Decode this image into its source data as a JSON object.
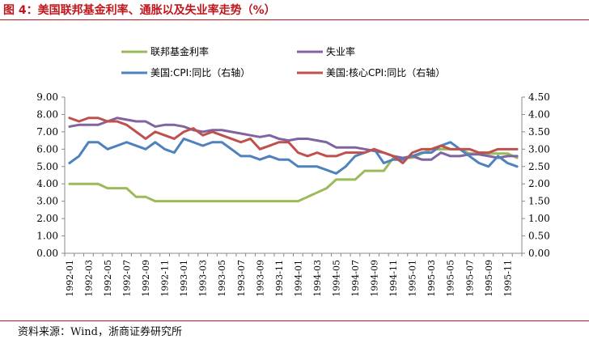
{
  "header": {
    "title": "图 4：美国联邦基金利率、通胀以及失业率走势（%）"
  },
  "footer": {
    "source": "资料来源：Wind，浙商证券研究所"
  },
  "chart_data": {
    "type": "line",
    "x": [
      "1992-01",
      "1992-02",
      "1992-03",
      "1992-04",
      "1992-05",
      "1992-06",
      "1992-07",
      "1992-08",
      "1992-09",
      "1992-10",
      "1992-11",
      "1992-12",
      "1993-01",
      "1993-02",
      "1993-03",
      "1993-04",
      "1993-05",
      "1993-06",
      "1993-07",
      "1993-08",
      "1993-09",
      "1993-10",
      "1993-11",
      "1993-12",
      "1994-01",
      "1994-02",
      "1994-03",
      "1994-04",
      "1994-05",
      "1994-06",
      "1994-07",
      "1994-08",
      "1994-09",
      "1994-10",
      "1994-11",
      "1994-12",
      "1995-01",
      "1995-02",
      "1995-03",
      "1995-04",
      "1995-05",
      "1995-06",
      "1995-07",
      "1995-08",
      "1995-09",
      "1995-10",
      "1995-11",
      "1995-12"
    ],
    "x_tick_labels": [
      "1992-01",
      "1992-03",
      "1992-05",
      "1992-07",
      "1992-09",
      "1992-11",
      "1993-01",
      "1993-03",
      "1993-05",
      "1993-07",
      "1993-09",
      "1993-11",
      "1994-01",
      "1994-03",
      "1994-05",
      "1994-07",
      "1994-09",
      "1994-11",
      "1995-01",
      "1995-03",
      "1995-05",
      "1995-07",
      "1995-09",
      "1995-11"
    ],
    "left_axis": {
      "ylim": [
        0,
        9
      ],
      "ticks": [
        "0.00",
        "1.00",
        "2.00",
        "3.00",
        "4.00",
        "5.00",
        "6.00",
        "7.00",
        "8.00",
        "9.00"
      ]
    },
    "right_axis": {
      "ylim": [
        0,
        4.5
      ],
      "ticks": [
        "0.00",
        "0.50",
        "1.00",
        "1.50",
        "2.00",
        "2.50",
        "3.00",
        "3.50",
        "4.00",
        "4.50"
      ]
    },
    "grid": false,
    "legend_position": "top",
    "series": [
      {
        "name": "联邦基金利率",
        "axis": "left",
        "color": "#9bbb59",
        "values": [
          4.0,
          4.0,
          4.0,
          4.0,
          3.75,
          3.75,
          3.75,
          3.25,
          3.25,
          3.0,
          3.0,
          3.0,
          3.0,
          3.0,
          3.0,
          3.0,
          3.0,
          3.0,
          3.0,
          3.0,
          3.0,
          3.0,
          3.0,
          3.0,
          3.0,
          3.25,
          3.5,
          3.75,
          4.25,
          4.25,
          4.25,
          4.75,
          4.75,
          4.75,
          5.5,
          5.5,
          5.5,
          5.75,
          6.0,
          6.0,
          6.0,
          6.0,
          5.75,
          5.75,
          5.75,
          5.75,
          5.75,
          5.5
        ]
      },
      {
        "name": "失业率",
        "axis": "left",
        "color": "#8064a2",
        "values": [
          7.3,
          7.4,
          7.4,
          7.4,
          7.6,
          7.8,
          7.7,
          7.6,
          7.6,
          7.3,
          7.4,
          7.4,
          7.3,
          7.1,
          7.0,
          7.1,
          7.1,
          7.0,
          6.9,
          6.8,
          6.7,
          6.8,
          6.6,
          6.5,
          6.6,
          6.6,
          6.5,
          6.4,
          6.1,
          6.1,
          6.1,
          6.0,
          5.9,
          5.8,
          5.6,
          5.5,
          5.6,
          5.4,
          5.4,
          5.8,
          5.6,
          5.6,
          5.7,
          5.7,
          5.6,
          5.5,
          5.6,
          5.6
        ]
      },
      {
        "name": "美国:CPI:同比（右轴）",
        "axis": "right",
        "color": "#4f81bd",
        "values": [
          2.6,
          2.8,
          3.2,
          3.2,
          3.0,
          3.1,
          3.2,
          3.1,
          3.0,
          3.2,
          3.0,
          2.9,
          3.3,
          3.2,
          3.1,
          3.2,
          3.2,
          3.0,
          2.8,
          2.8,
          2.7,
          2.8,
          2.7,
          2.7,
          2.5,
          2.5,
          2.5,
          2.4,
          2.3,
          2.5,
          2.8,
          2.9,
          3.0,
          2.6,
          2.7,
          2.7,
          2.8,
          2.9,
          2.9,
          3.1,
          3.2,
          3.0,
          2.8,
          2.6,
          2.5,
          2.8,
          2.6,
          2.5
        ]
      },
      {
        "name": "美国:核心CPI:同比（右轴）",
        "axis": "right",
        "color": "#c0504d",
        "values": [
          3.9,
          3.8,
          3.9,
          3.9,
          3.8,
          3.8,
          3.7,
          3.5,
          3.3,
          3.5,
          3.4,
          3.3,
          3.5,
          3.6,
          3.4,
          3.5,
          3.4,
          3.3,
          3.2,
          3.3,
          3.0,
          3.1,
          3.2,
          3.2,
          2.9,
          2.8,
          2.9,
          2.8,
          2.8,
          2.9,
          2.9,
          2.9,
          3.0,
          2.9,
          2.8,
          2.6,
          2.9,
          3.0,
          3.0,
          3.1,
          3.0,
          3.0,
          3.0,
          2.9,
          2.9,
          3.0,
          3.0,
          3.0
        ]
      }
    ]
  }
}
